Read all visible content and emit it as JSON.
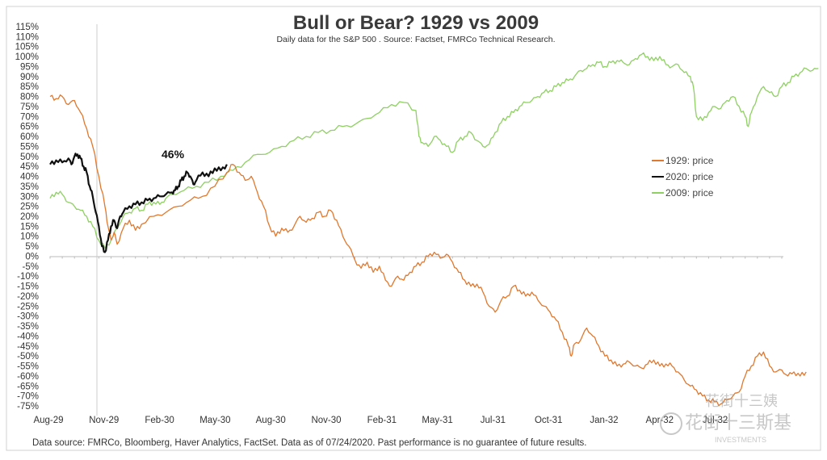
{
  "chart_data": {
    "type": "line",
    "title": "Bull or Bear? 1929 vs 2009",
    "subtitle": "Daily data for the S&P 500 .  Source: Factset, FMRCo Technical Research.",
    "xlabel": "",
    "ylabel": "",
    "x_ticks": [
      "Aug-29",
      "Nov-29",
      "Feb-30",
      "May-30",
      "Aug-30",
      "Nov-30",
      "Feb-31",
      "May-31",
      "Jul-31",
      "Oct-31",
      "Jan-32",
      "Apr-32",
      "Jul-32"
    ],
    "y_ticks": [
      "115%",
      "110%",
      "105%",
      "100%",
      "95%",
      "90%",
      "85%",
      "80%",
      "75%",
      "70%",
      "65%",
      "60%",
      "55%",
      "50%",
      "45%",
      "40%",
      "35%",
      "30%",
      "25%",
      "20%",
      "15%",
      "10%",
      "5%",
      "0%",
      "-5%",
      "-10%",
      "-15%",
      "-20%",
      "-25%",
      "-30%",
      "-35%",
      "-40%",
      "-45%",
      "-50%",
      "-55%",
      "-60%",
      "-65%",
      "-70%",
      "-75%"
    ],
    "y_range": [
      -75,
      115
    ],
    "x_range": [
      0,
      12
    ],
    "legend_position": "right",
    "annotation": "46%",
    "series": [
      {
        "name": "1929: price",
        "color": "#e0782e",
        "points": [
          [
            0,
            80
          ],
          [
            0.1,
            79
          ],
          [
            0.2,
            80
          ],
          [
            0.3,
            76
          ],
          [
            0.4,
            78
          ],
          [
            0.5,
            72
          ],
          [
            0.6,
            64
          ],
          [
            0.7,
            55
          ],
          [
            0.8,
            40
          ],
          [
            0.9,
            25
          ],
          [
            0.95,
            15
          ],
          [
            1.0,
            8
          ],
          [
            1.05,
            12
          ],
          [
            1.1,
            6
          ],
          [
            1.2,
            14
          ],
          [
            1.3,
            18
          ],
          [
            1.4,
            13
          ],
          [
            1.5,
            16
          ],
          [
            1.7,
            20
          ],
          [
            1.9,
            22
          ],
          [
            2.1,
            25
          ],
          [
            2.3,
            28
          ],
          [
            2.5,
            30
          ],
          [
            2.7,
            35
          ],
          [
            2.9,
            42
          ],
          [
            3.0,
            46
          ],
          [
            3.1,
            42
          ],
          [
            3.2,
            38
          ],
          [
            3.3,
            40
          ],
          [
            3.4,
            32
          ],
          [
            3.5,
            25
          ],
          [
            3.6,
            15
          ],
          [
            3.7,
            10
          ],
          [
            3.8,
            14
          ],
          [
            3.9,
            12
          ],
          [
            4.0,
            15
          ],
          [
            4.1,
            20
          ],
          [
            4.2,
            17
          ],
          [
            4.3,
            19
          ],
          [
            4.4,
            22
          ],
          [
            4.5,
            20
          ],
          [
            4.6,
            23
          ],
          [
            4.7,
            18
          ],
          [
            4.8,
            10
          ],
          [
            4.9,
            5
          ],
          [
            5.0,
            -2
          ],
          [
            5.1,
            -6
          ],
          [
            5.2,
            -3
          ],
          [
            5.3,
            -8
          ],
          [
            5.4,
            -5
          ],
          [
            5.5,
            -12
          ],
          [
            5.6,
            -15
          ],
          [
            5.7,
            -10
          ],
          [
            5.8,
            -12
          ],
          [
            5.9,
            -8
          ],
          [
            6.0,
            -5
          ],
          [
            6.1,
            -3
          ],
          [
            6.2,
            0
          ],
          [
            6.3,
            2
          ],
          [
            6.4,
            -1
          ],
          [
            6.5,
            1
          ],
          [
            6.6,
            -3
          ],
          [
            6.7,
            -8
          ],
          [
            6.8,
            -12
          ],
          [
            6.9,
            -15
          ],
          [
            7.0,
            -14
          ],
          [
            7.1,
            -18
          ],
          [
            7.2,
            -25
          ],
          [
            7.3,
            -28
          ],
          [
            7.4,
            -22
          ],
          [
            7.5,
            -20
          ],
          [
            7.6,
            -15
          ],
          [
            7.7,
            -17
          ],
          [
            7.8,
            -20
          ],
          [
            7.9,
            -18
          ],
          [
            8.0,
            -22
          ],
          [
            8.1,
            -25
          ],
          [
            8.2,
            -28
          ],
          [
            8.3,
            -32
          ],
          [
            8.4,
            -38
          ],
          [
            8.5,
            -45
          ],
          [
            8.55,
            -50
          ],
          [
            8.6,
            -44
          ],
          [
            8.7,
            -42
          ],
          [
            8.8,
            -36
          ],
          [
            8.9,
            -40
          ],
          [
            9.0,
            -45
          ],
          [
            9.1,
            -50
          ],
          [
            9.2,
            -52
          ],
          [
            9.3,
            -55
          ],
          [
            9.4,
            -54
          ],
          [
            9.5,
            -53
          ],
          [
            9.6,
            -55
          ],
          [
            9.7,
            -56
          ],
          [
            9.8,
            -54
          ],
          [
            9.9,
            -52
          ],
          [
            10.0,
            -55
          ],
          [
            10.1,
            -54
          ],
          [
            10.2,
            -55
          ],
          [
            10.3,
            -58
          ],
          [
            10.4,
            -62
          ],
          [
            10.5,
            -65
          ],
          [
            10.6,
            -67
          ],
          [
            10.7,
            -70
          ],
          [
            10.8,
            -72
          ],
          [
            10.9,
            -73
          ],
          [
            11.0,
            -74
          ],
          [
            11.1,
            -72
          ],
          [
            11.2,
            -70
          ],
          [
            11.3,
            -68
          ],
          [
            11.4,
            -60
          ],
          [
            11.5,
            -55
          ],
          [
            11.6,
            -50
          ],
          [
            11.7,
            -48
          ],
          [
            11.8,
            -55
          ],
          [
            11.9,
            -58
          ],
          [
            12.0,
            -57
          ],
          [
            12.1,
            -60
          ],
          [
            12.2,
            -58
          ],
          [
            12.3,
            -60
          ],
          [
            12.4,
            -58
          ]
        ]
      },
      {
        "name": "2020: price",
        "color": "#111111",
        "points": [
          [
            0,
            46
          ],
          [
            0.1,
            48
          ],
          [
            0.2,
            47
          ],
          [
            0.3,
            49
          ],
          [
            0.35,
            46
          ],
          [
            0.4,
            50
          ],
          [
            0.45,
            51
          ],
          [
            0.5,
            49
          ],
          [
            0.55,
            45
          ],
          [
            0.6,
            42
          ],
          [
            0.65,
            35
          ],
          [
            0.7,
            30
          ],
          [
            0.75,
            22
          ],
          [
            0.8,
            15
          ],
          [
            0.85,
            5
          ],
          [
            0.9,
            2
          ],
          [
            0.95,
            8
          ],
          [
            1.0,
            15
          ],
          [
            1.05,
            18
          ],
          [
            1.1,
            14
          ],
          [
            1.15,
            20
          ],
          [
            1.2,
            22
          ],
          [
            1.3,
            25
          ],
          [
            1.4,
            26
          ],
          [
            1.5,
            27
          ],
          [
            1.6,
            28
          ],
          [
            1.7,
            29
          ],
          [
            1.8,
            30
          ],
          [
            1.9,
            31
          ],
          [
            2.0,
            32
          ],
          [
            2.05,
            33
          ],
          [
            2.1,
            35
          ],
          [
            2.15,
            38
          ],
          [
            2.2,
            40
          ],
          [
            2.25,
            42
          ],
          [
            2.3,
            40
          ],
          [
            2.35,
            36
          ],
          [
            2.4,
            38
          ],
          [
            2.5,
            42
          ],
          [
            2.6,
            40
          ],
          [
            2.7,
            44
          ],
          [
            2.8,
            43
          ],
          [
            2.9,
            46
          ]
        ]
      },
      {
        "name": "2009: price",
        "color": "#8ed062",
        "points": [
          [
            0,
            29
          ],
          [
            0.1,
            32
          ],
          [
            0.2,
            31
          ],
          [
            0.3,
            27
          ],
          [
            0.4,
            25
          ],
          [
            0.5,
            23
          ],
          [
            0.6,
            20
          ],
          [
            0.7,
            15
          ],
          [
            0.8,
            8
          ],
          [
            0.9,
            4
          ],
          [
            1.0,
            8
          ],
          [
            1.1,
            14
          ],
          [
            1.2,
            20
          ],
          [
            1.3,
            22
          ],
          [
            1.4,
            24
          ],
          [
            1.5,
            23
          ],
          [
            1.6,
            26
          ],
          [
            1.7,
            27
          ],
          [
            1.8,
            26
          ],
          [
            1.9,
            29
          ],
          [
            2.0,
            31
          ],
          [
            2.2,
            33
          ],
          [
            2.4,
            35
          ],
          [
            2.6,
            37
          ],
          [
            2.8,
            40
          ],
          [
            3.0,
            43
          ],
          [
            3.2,
            47
          ],
          [
            3.4,
            51
          ],
          [
            3.6,
            52
          ],
          [
            3.8,
            55
          ],
          [
            4.0,
            58
          ],
          [
            4.2,
            60
          ],
          [
            4.4,
            62
          ],
          [
            4.6,
            63
          ],
          [
            4.8,
            65
          ],
          [
            5.0,
            66
          ],
          [
            5.2,
            69
          ],
          [
            5.4,
            72
          ],
          [
            5.6,
            76
          ],
          [
            5.8,
            77
          ],
          [
            6.0,
            73
          ],
          [
            6.05,
            60
          ],
          [
            6.1,
            57
          ],
          [
            6.2,
            55
          ],
          [
            6.3,
            60
          ],
          [
            6.4,
            58
          ],
          [
            6.5,
            55
          ],
          [
            6.6,
            52
          ],
          [
            6.7,
            58
          ],
          [
            6.8,
            60
          ],
          [
            6.9,
            62
          ],
          [
            7.0,
            58
          ],
          [
            7.1,
            55
          ],
          [
            7.2,
            56
          ],
          [
            7.3,
            62
          ],
          [
            7.4,
            67
          ],
          [
            7.5,
            70
          ],
          [
            7.6,
            72
          ],
          [
            7.7,
            75
          ],
          [
            7.8,
            77
          ],
          [
            7.9,
            78
          ],
          [
            8.0,
            80
          ],
          [
            8.1,
            82
          ],
          [
            8.2,
            83
          ],
          [
            8.3,
            85
          ],
          [
            8.4,
            87
          ],
          [
            8.5,
            88
          ],
          [
            8.6,
            90
          ],
          [
            8.7,
            93
          ],
          [
            8.8,
            94
          ],
          [
            8.9,
            96
          ],
          [
            9.0,
            97
          ],
          [
            9.1,
            95
          ],
          [
            9.2,
            97
          ],
          [
            9.3,
            98
          ],
          [
            9.4,
            97
          ],
          [
            9.5,
            96
          ],
          [
            9.6,
            99
          ],
          [
            9.7,
            101
          ],
          [
            9.8,
            100
          ],
          [
            9.9,
            98
          ],
          [
            10.0,
            100
          ],
          [
            10.1,
            96
          ],
          [
            10.2,
            95
          ],
          [
            10.3,
            96
          ],
          [
            10.4,
            92
          ],
          [
            10.5,
            90
          ],
          [
            10.55,
            85
          ],
          [
            10.6,
            70
          ],
          [
            10.7,
            68
          ],
          [
            10.8,
            72
          ],
          [
            10.9,
            75
          ],
          [
            11.0,
            74
          ],
          [
            11.1,
            78
          ],
          [
            11.2,
            80
          ],
          [
            11.3,
            75
          ],
          [
            11.4,
            70
          ],
          [
            11.45,
            65
          ],
          [
            11.5,
            72
          ],
          [
            11.6,
            80
          ],
          [
            11.7,
            85
          ],
          [
            11.8,
            82
          ],
          [
            11.9,
            80
          ],
          [
            12.0,
            85
          ],
          [
            12.1,
            87
          ],
          [
            12.2,
            90
          ],
          [
            12.3,
            92
          ],
          [
            12.4,
            94
          ],
          [
            12.5,
            93
          ],
          [
            12.6,
            94
          ]
        ]
      }
    ]
  },
  "footnote": "Data source: FMRCo, Bloomberg, Haver Analytics, FactSet. Data as of 07/24/2020. Past performance is no guarantee of future results.",
  "watermarks": [
    "花街十三姨",
    "花街十三斯基",
    "INVESTMENTS"
  ],
  "icon": "wechat-icon"
}
